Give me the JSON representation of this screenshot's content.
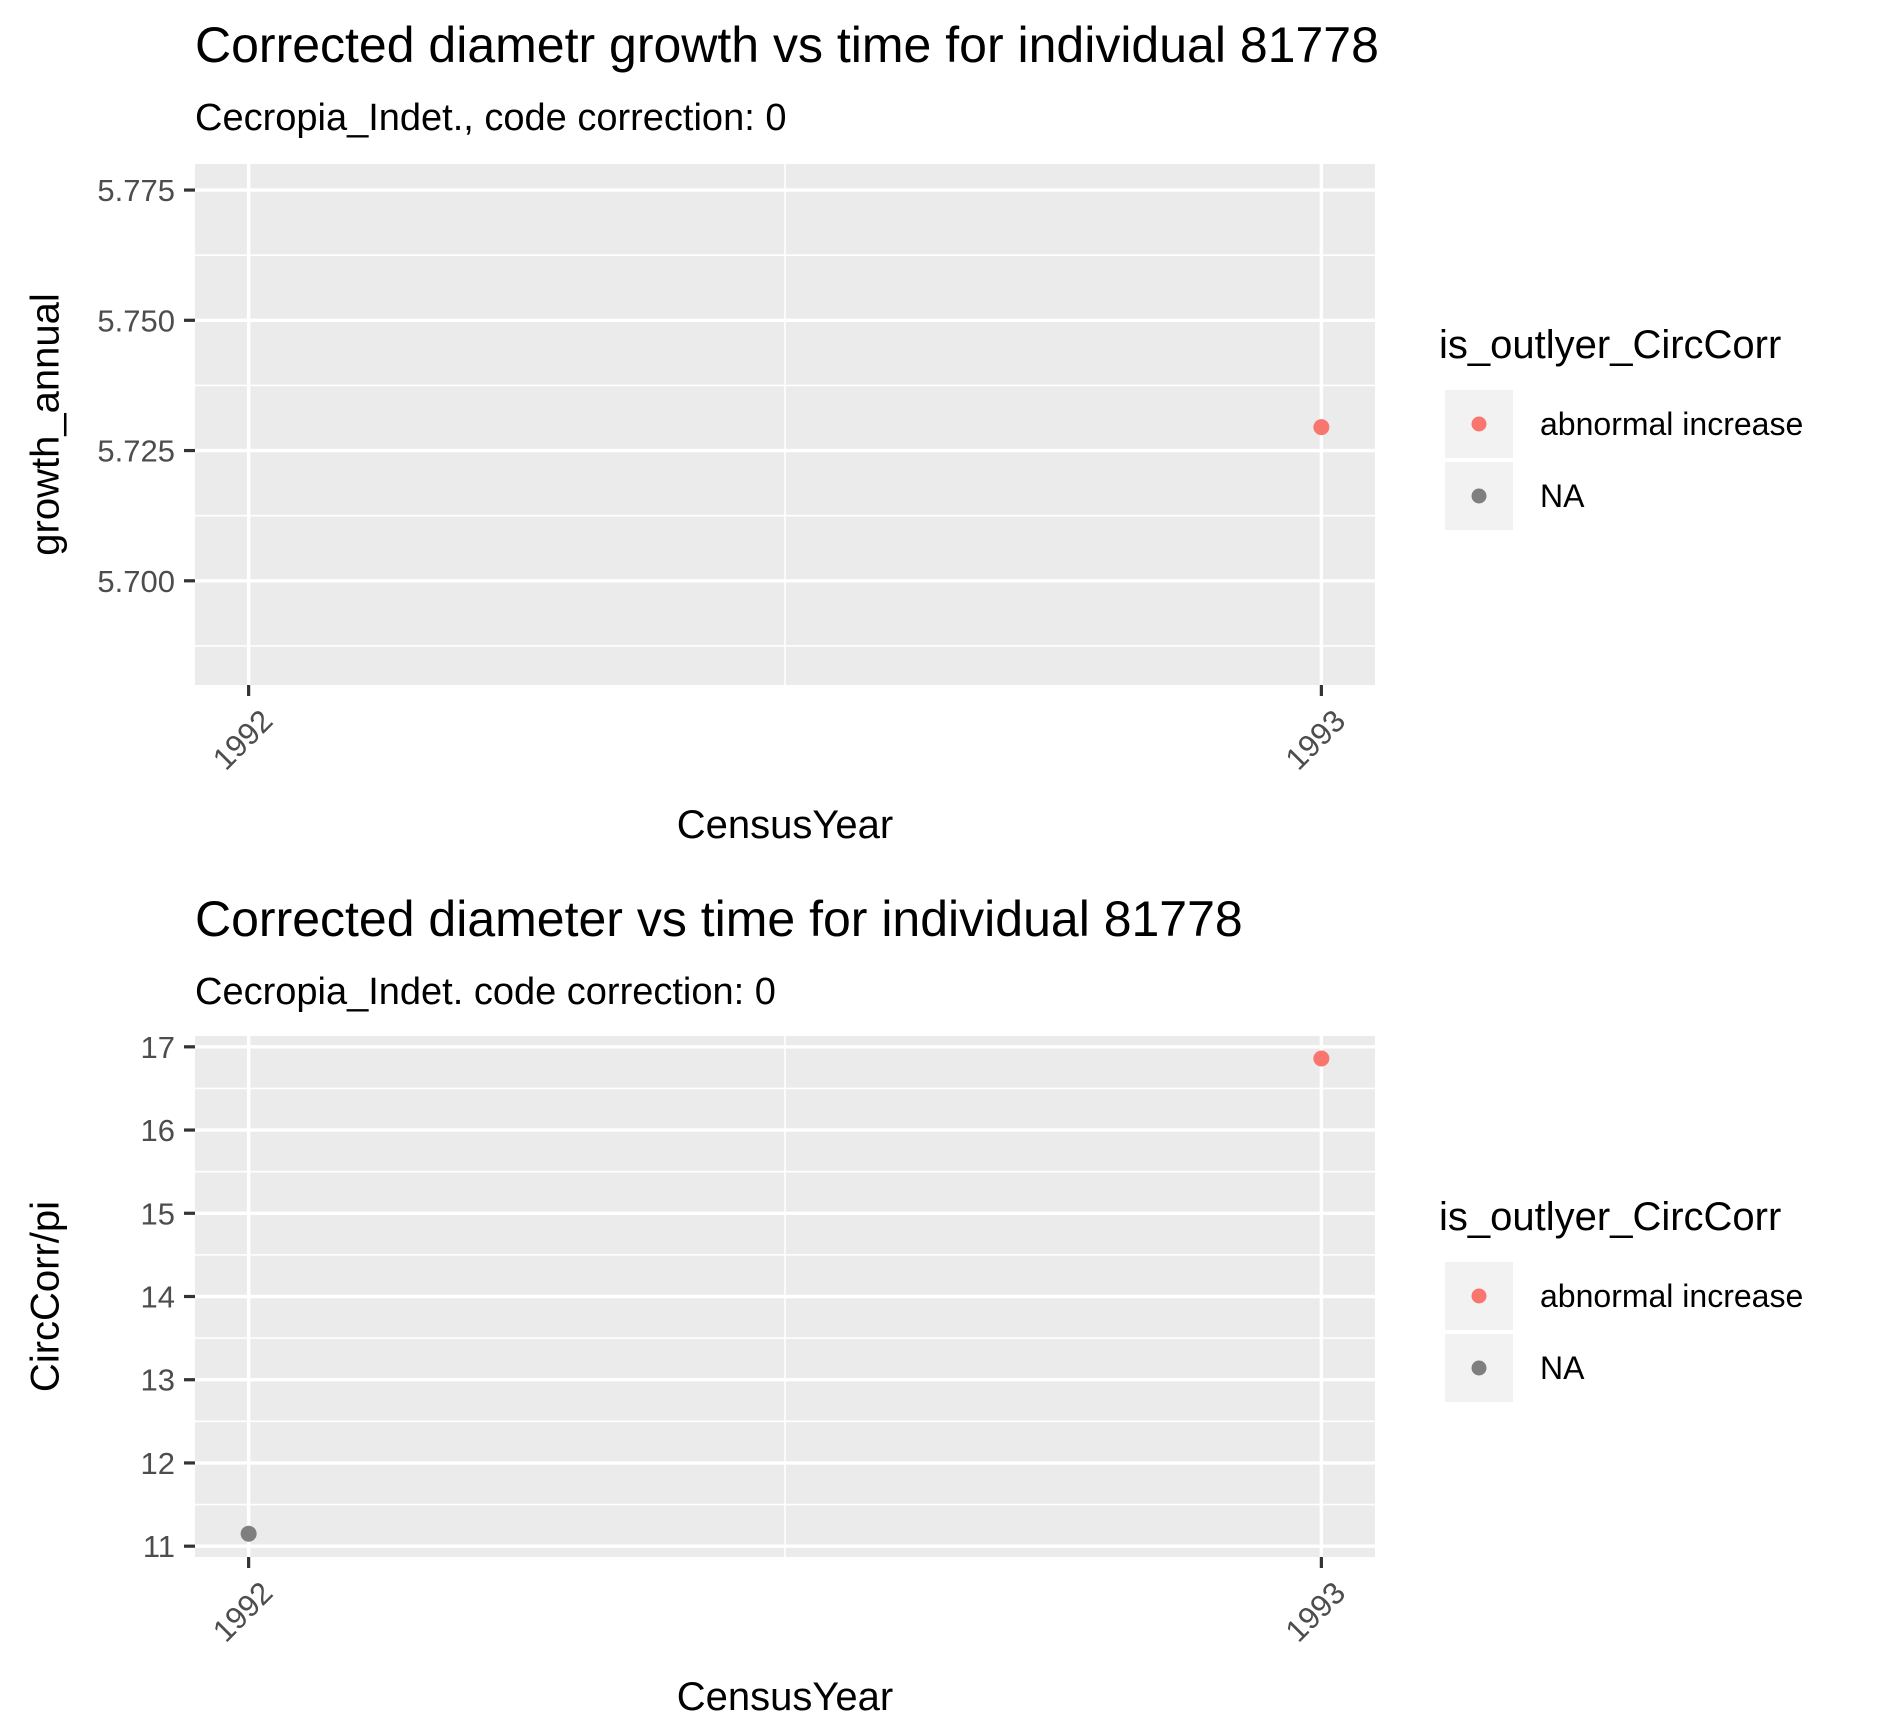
{
  "colors": {
    "panel_bg": "#ebebeb",
    "grid_major": "#ffffff",
    "key_bg": "#f2f2f2",
    "tick": "#333333"
  },
  "chart_data": [
    {
      "type": "scatter",
      "title": "Corrected diametr growth vs time for individual 81778",
      "subtitle": "Cecropia_Indet., code correction: 0",
      "xlabel": "CensusYear",
      "ylabel": "growth_annual",
      "xlim": [
        1991.95,
        1993.05
      ],
      "ylim": [
        5.68,
        5.78
      ],
      "x_ticks": [
        1992,
        1993
      ],
      "x_tick_labels": [
        "1992",
        "1993"
      ],
      "y_ticks": [
        5.7,
        5.725,
        5.75,
        5.775
      ],
      "y_tick_labels": [
        "5.700",
        "5.725",
        "5.750",
        "5.775"
      ],
      "grid": true,
      "legend": {
        "title": "is_outlyer_CircCorr",
        "position": "right",
        "entries": [
          {
            "label": "abnormal increase",
            "color": "#f8766d"
          },
          {
            "label": "NA",
            "color": "#7f7f7f"
          }
        ]
      },
      "points": [
        {
          "x": 1993,
          "y": 5.7295,
          "group": "abnormal increase",
          "color": "#f8766d"
        }
      ]
    },
    {
      "type": "scatter",
      "title": "Corrected diameter vs time for individual 81778",
      "subtitle": "Cecropia_Indet. code correction: 0",
      "xlabel": "CensusYear",
      "ylabel": "CircCorr/pi",
      "xlim": [
        1991.95,
        1993.05
      ],
      "ylim": [
        10.87,
        17.13
      ],
      "x_ticks": [
        1992,
        1993
      ],
      "x_tick_labels": [
        "1992",
        "1993"
      ],
      "y_ticks": [
        11,
        12,
        13,
        14,
        15,
        16,
        17
      ],
      "y_tick_labels": [
        "11",
        "12",
        "13",
        "14",
        "15",
        "16",
        "17"
      ],
      "grid": true,
      "legend": {
        "title": "is_outlyer_CircCorr",
        "position": "right",
        "entries": [
          {
            "label": "abnormal increase",
            "color": "#f8766d"
          },
          {
            "label": "NA",
            "color": "#7f7f7f"
          }
        ]
      },
      "points": [
        {
          "x": 1992,
          "y": 11.15,
          "group": "NA",
          "color": "#7f7f7f"
        },
        {
          "x": 1993,
          "y": 16.86,
          "group": "abnormal increase",
          "color": "#f8766d"
        }
      ]
    }
  ]
}
